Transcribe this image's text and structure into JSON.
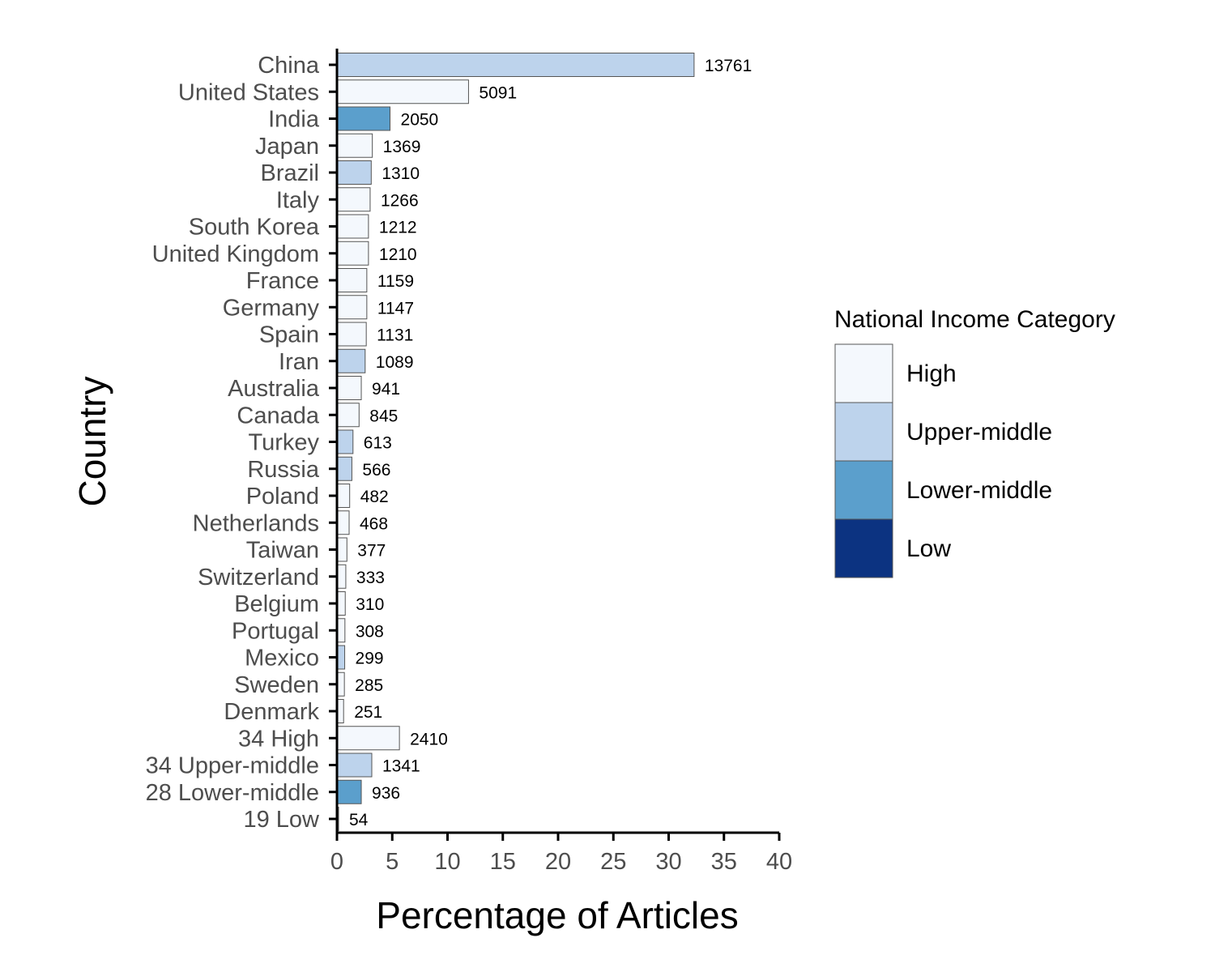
{
  "chart_data": {
    "type": "bar",
    "orientation": "horizontal",
    "xlabel": "Percentage of Articles",
    "ylabel": "Country",
    "xlim": [
      0,
      40
    ],
    "xticks": [
      "0",
      "5",
      "10",
      "15",
      "20",
      "25",
      "30",
      "35",
      "40"
    ],
    "grid": false,
    "legend": {
      "title": "National Income Category",
      "placement": "right",
      "entries": [
        {
          "label": "High",
          "color": "#f4f8fd"
        },
        {
          "label": "Upper-middle",
          "color": "#bdd3ec"
        },
        {
          "label": "Lower-middle",
          "color": "#5b9fcc"
        },
        {
          "label": "Low",
          "color": "#0c3381"
        }
      ]
    },
    "categories": [
      "China",
      "United States",
      "India",
      "Japan",
      "Brazil",
      "Italy",
      "South Korea",
      "United Kingdom",
      "France",
      "Germany",
      "Spain",
      "Iran",
      "Australia",
      "Canada",
      "Turkey",
      "Russia",
      "Poland",
      "Netherlands",
      "Taiwan",
      "Switzerland",
      "Belgium",
      "Portugal",
      "Mexico",
      "Sweden",
      "Denmark",
      "34 High",
      "34 Upper-middle",
      "28 Lower-middle",
      "19 Low"
    ],
    "values": [
      32.3,
      11.9,
      4.8,
      3.2,
      3.1,
      3.0,
      2.85,
      2.85,
      2.7,
      2.7,
      2.65,
      2.55,
      2.2,
      2.0,
      1.45,
      1.35,
      1.15,
      1.1,
      0.9,
      0.8,
      0.75,
      0.72,
      0.7,
      0.67,
      0.6,
      5.65,
      3.15,
      2.2,
      0.13
    ],
    "counts": [
      "13761",
      "5091",
      "2050",
      "1369",
      "1310",
      "1266",
      "1212",
      "1210",
      "1159",
      "1147",
      "1131",
      "1089",
      "941",
      "845",
      "613",
      "566",
      "482",
      "468",
      "377",
      "333",
      "310",
      "308",
      "299",
      "285",
      "251",
      "2410",
      "1341",
      "936",
      "54"
    ],
    "income": [
      "Upper-middle",
      "High",
      "Lower-middle",
      "High",
      "Upper-middle",
      "High",
      "High",
      "High",
      "High",
      "High",
      "High",
      "Upper-middle",
      "High",
      "High",
      "Upper-middle",
      "Upper-middle",
      "High",
      "High",
      "High",
      "High",
      "High",
      "High",
      "Upper-middle",
      "High",
      "High",
      "High",
      "Upper-middle",
      "Lower-middle",
      "Low"
    ]
  }
}
